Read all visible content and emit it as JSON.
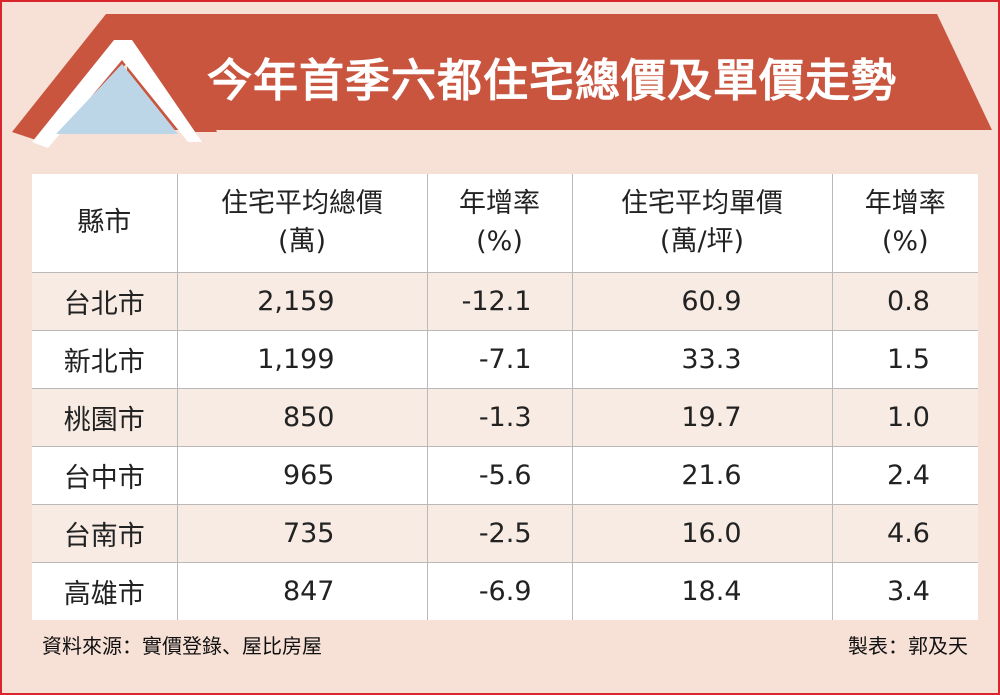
{
  "title": "今年首季六都住宅總價及單價走勢",
  "colors": {
    "border": "#d9262c",
    "banner": "#c9553f",
    "background": "#f7e1d6",
    "roof_window": "#bcd6e8"
  },
  "table": {
    "headers": [
      {
        "line1": "縣市",
        "line2": ""
      },
      {
        "line1": "住宅平均總價",
        "line2": "(萬)"
      },
      {
        "line1": "年增率",
        "line2": "(%)"
      },
      {
        "line1": "住宅平均單價",
        "line2": "(萬/坪)"
      },
      {
        "line1": "年增率",
        "line2": "(%)"
      }
    ],
    "rows": [
      {
        "city": "台北市",
        "total_price": "2,159",
        "total_growth": "-12.1",
        "unit_price": "60.9",
        "unit_growth": "0.8"
      },
      {
        "city": "新北市",
        "total_price": "1,199",
        "total_growth": "-7.1",
        "unit_price": "33.3",
        "unit_growth": "1.5"
      },
      {
        "city": "桃園市",
        "total_price": "850",
        "total_growth": "-1.3",
        "unit_price": "19.7",
        "unit_growth": "1.0"
      },
      {
        "city": "台中市",
        "total_price": "965",
        "total_growth": "-5.6",
        "unit_price": "21.6",
        "unit_growth": "2.4"
      },
      {
        "city": "台南市",
        "total_price": "735",
        "total_growth": "-2.5",
        "unit_price": "16.0",
        "unit_growth": "4.6"
      },
      {
        "city": "高雄市",
        "total_price": "847",
        "total_growth": "-6.9",
        "unit_price": "18.4",
        "unit_growth": "3.4"
      }
    ]
  },
  "footer": {
    "source": "資料來源：實價登錄、屋比房屋",
    "credit": "製表：郭及天"
  }
}
